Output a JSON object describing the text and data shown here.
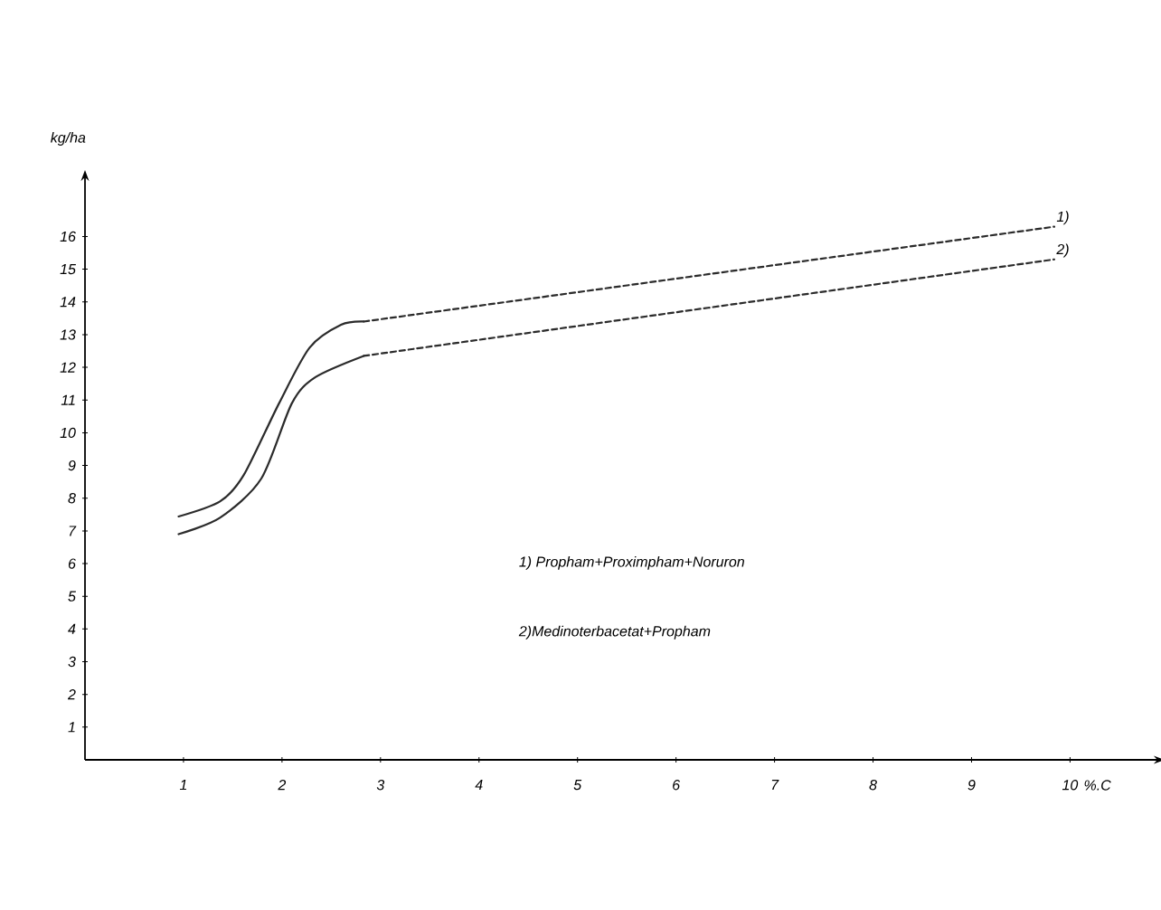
{
  "chart_data": {
    "type": "line",
    "xlabel": "%.C",
    "ylabel": "kg/ha",
    "xlim": [
      0,
      10.85
    ],
    "ylim": [
      0,
      17.7
    ],
    "xticks": [
      1,
      2,
      3,
      4,
      5,
      6,
      7,
      8,
      9,
      10
    ],
    "yticks": [
      1,
      2,
      3,
      4,
      5,
      6,
      7,
      8,
      9,
      10,
      11,
      12,
      13,
      14,
      15,
      16
    ],
    "series": [
      {
        "color": "#2b2b2b",
        "line_style": "solid",
        "x": [
          0.95,
          1.37,
          1.61,
          1.97,
          2.28,
          2.6,
          2.83
        ],
        "values": [
          7.44,
          7.9,
          8.7,
          10.9,
          12.6,
          13.3,
          13.4
        ]
      },
      {
        "name": "1)",
        "color": "#2b2b2b",
        "line_style": "dashed",
        "x": [
          2.83,
          9.84
        ],
        "values": [
          13.4,
          16.3
        ]
      },
      {
        "color": "#2b2b2b",
        "line_style": "solid",
        "x": [
          0.95,
          1.37,
          1.79,
          2.1,
          2.34,
          2.83
        ],
        "values": [
          6.9,
          7.4,
          8.6,
          10.9,
          11.7,
          12.35
        ]
      },
      {
        "name": "2)",
        "color": "#2b2b2b",
        "line_style": "dashed",
        "x": [
          2.83,
          9.84
        ],
        "values": [
          12.35,
          15.3
        ]
      }
    ],
    "annotations": [
      "1) Propham+Proximpham+Noruron",
      "2)Medinoterbacetat+Propham"
    ]
  }
}
